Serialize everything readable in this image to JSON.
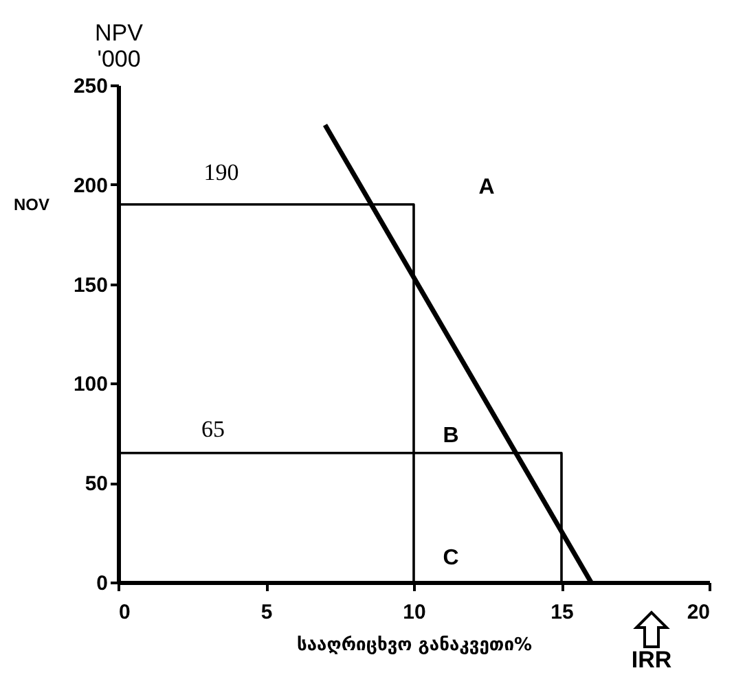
{
  "chart_data": {
    "type": "line",
    "xlabel": "სააღრიცხვო განაკვეთი%",
    "ylabel": "NPV '000",
    "xlim": [
      0,
      20
    ],
    "xticks": [
      0,
      5,
      10,
      15,
      20
    ],
    "ylim": [
      0,
      250
    ],
    "yticks": [
      0,
      50,
      100,
      150,
      200,
      250
    ],
    "grid": false,
    "marker": "none",
    "line_style": "solid",
    "series": [
      {
        "color": "#000000",
        "x": [
          7,
          16
        ],
        "values": [
          230,
          0
        ]
      },
      {
        "color": "#000000",
        "x": [
          0,
          10,
          10
        ],
        "values": [
          190,
          190,
          0
        ]
      },
      {
        "color": "#000000",
        "x": [
          0,
          15,
          15
        ],
        "values": [
          65,
          65,
          0
        ]
      }
    ],
    "annotations": [
      "190",
      "65",
      "A",
      "B",
      "C",
      "NOV",
      "IRR"
    ]
  }
}
